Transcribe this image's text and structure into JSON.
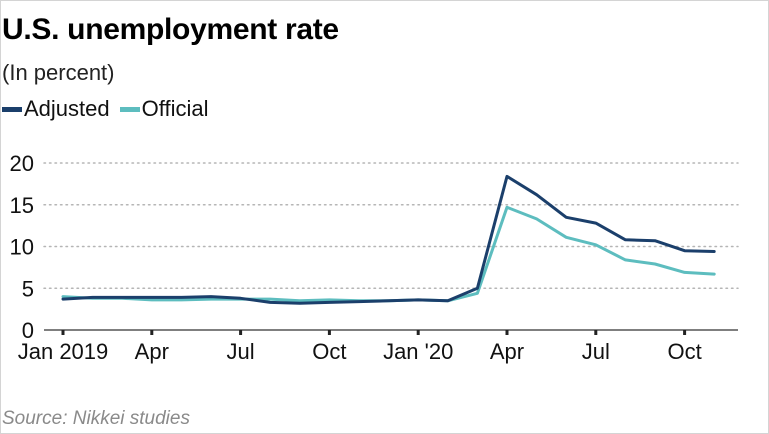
{
  "chart_data": {
    "type": "line",
    "title": "U.S. unemployment rate",
    "subtitle": "(In percent)",
    "source": "Source: Nikkei studies",
    "legend_position": "top-left",
    "grid": true,
    "x_tick_labels": [
      "Jan 2019",
      "Apr",
      "Jul",
      "Oct",
      "Jan '20",
      "Apr",
      "Jul",
      "Oct"
    ],
    "x_tick_months": [
      0,
      3,
      6,
      9,
      12,
      15,
      18,
      21
    ],
    "y_ticks": [
      0,
      5,
      10,
      15,
      20
    ],
    "ylim": [
      0,
      20
    ],
    "x_months": [
      "2019-01",
      "2019-02",
      "2019-03",
      "2019-04",
      "2019-05",
      "2019-06",
      "2019-07",
      "2019-08",
      "2019-09",
      "2019-10",
      "2019-11",
      "2019-12",
      "2020-01",
      "2020-02",
      "2020-03",
      "2020-04",
      "2020-05",
      "2020-06",
      "2020-07",
      "2020-08",
      "2020-09",
      "2020-10",
      "2020-11"
    ],
    "series": [
      {
        "name": "Adjusted",
        "color": "#1b3f6b",
        "values": [
          3.7,
          3.9,
          3.9,
          3.9,
          3.9,
          4.0,
          3.8,
          3.3,
          3.2,
          3.3,
          3.4,
          3.5,
          3.6,
          3.5,
          5.0,
          18.4,
          16.2,
          13.5,
          12.8,
          10.8,
          10.7,
          9.5,
          9.4
        ]
      },
      {
        "name": "Official",
        "color": "#5dbdbf",
        "values": [
          4.0,
          3.8,
          3.8,
          3.6,
          3.6,
          3.7,
          3.7,
          3.7,
          3.5,
          3.6,
          3.5,
          3.5,
          3.6,
          3.5,
          4.4,
          14.7,
          13.3,
          11.1,
          10.2,
          8.4,
          7.9,
          6.9,
          6.7
        ]
      }
    ]
  }
}
